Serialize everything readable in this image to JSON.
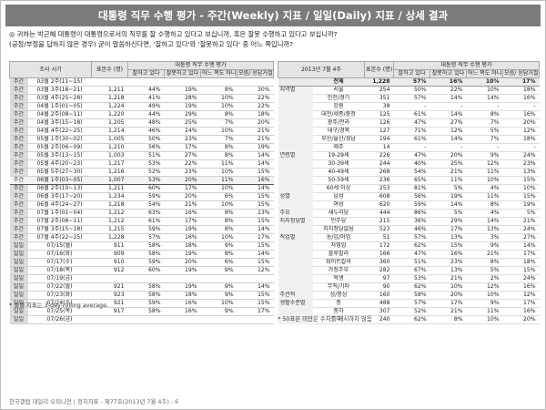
{
  "title": "대통령 직무 수행 평가 - 주간(Weekly) 지표 / 일일(Daily) 지표 / 상세 결과",
  "question": {
    "line1": "◎ 귀하는 박근혜 대통령이 대통령으로서의 직무를 잘 수행하고 있다고 보십니까, 혹은 잘못 수행하고 있다고 보십니까?",
    "line2": "(긍정/부정을 답하지 않은 경우) 굳이 말씀하신다면, '잘하고 있다'와 '잘못하고 있다' 중 어느 쪽입니까?"
  },
  "left_table": {
    "headers": {
      "period": "조사 시기",
      "base": "표본수 (명)",
      "group": "대통령 직무 수행 평가",
      "cols": [
        "잘하고 있다",
        "잘못하고 있다",
        "어느 쪽도 아니다",
        "모름/ 응답거절"
      ]
    },
    "rows": [
      {
        "kind": "주간",
        "period": "03월 2주(11~15)",
        "base": "",
        "v": [
          "",
          "",
          "",
          ""
        ],
        "blank": true
      },
      {
        "kind": "주간",
        "period": "03월 3주(18~21)",
        "base": "1,211",
        "v": [
          "44%",
          "19%",
          "8%",
          "30%"
        ]
      },
      {
        "kind": "주간",
        "period": "03월 4주(25~28)",
        "base": "1,218",
        "v": [
          "41%",
          "28%",
          "10%",
          "22%"
        ]
      },
      {
        "kind": "주간",
        "period": "04월 1주(01~05)",
        "base": "1,224",
        "v": [
          "49%",
          "19%",
          "10%",
          "22%"
        ]
      },
      {
        "kind": "주간",
        "period": "04월 2주(08~11)",
        "base": "1,220",
        "v": [
          "44%",
          "29%",
          "8%",
          "18%"
        ]
      },
      {
        "kind": "주간",
        "period": "04월 3주(15~18)",
        "base": "1,205",
        "v": [
          "48%",
          "25%",
          "7%",
          "20%"
        ]
      },
      {
        "kind": "주간",
        "period": "04월 4주(22~25)",
        "base": "1,214",
        "v": [
          "46%",
          "24%",
          "10%",
          "21%"
        ]
      },
      {
        "kind": "주간",
        "period": "05월 1주(30~02)",
        "base": "1,005",
        "v": [
          "50%",
          "23%",
          "7%",
          "21%"
        ]
      },
      {
        "kind": "주간",
        "period": "05월 2주(06~09)",
        "base": "1,210",
        "v": [
          "56%",
          "17%",
          "8%",
          "19%"
        ]
      },
      {
        "kind": "주간",
        "period": "05월 3주(13~15)",
        "base": "1,003",
        "v": [
          "51%",
          "27%",
          "8%",
          "14%"
        ]
      },
      {
        "kind": "주간",
        "period": "05월 4주(20~23)",
        "base": "1,217",
        "v": [
          "53%",
          "22%",
          "11%",
          "14%"
        ]
      },
      {
        "kind": "주간",
        "period": "05월 5주(27~30)",
        "base": "1,216",
        "v": [
          "52%",
          "23%",
          "10%",
          "15%"
        ]
      },
      {
        "kind": "주간",
        "period": "06월 1주(03~05)",
        "base": "1,007",
        "v": [
          "53%",
          "20%",
          "11%",
          "16%"
        ],
        "hl": true
      },
      {
        "kind": "주간",
        "period": "06월 2주(10~13)",
        "base": "1,211",
        "v": [
          "60%",
          "17%",
          "10%",
          "14%"
        ]
      },
      {
        "kind": "주간",
        "period": "06월 3주(17~20)",
        "base": "1,234",
        "v": [
          "59%",
          "20%",
          "6%",
          "15%"
        ]
      },
      {
        "kind": "주간",
        "period": "06월 4주(24~27)",
        "base": "1,218",
        "v": [
          "54%",
          "21%",
          "10%",
          "15%"
        ]
      },
      {
        "kind": "주간",
        "period": "07월 1주(01~04)",
        "base": "1,212",
        "v": [
          "63%",
          "16%",
          "8%",
          "13%"
        ]
      },
      {
        "kind": "주간",
        "period": "07월 2주(08~11)",
        "base": "1,212",
        "v": [
          "61%",
          "17%",
          "8%",
          "15%"
        ]
      },
      {
        "kind": "주간",
        "period": "07월 3주(15~18)",
        "base": "1,215",
        "v": [
          "59%",
          "19%",
          "8%",
          "14%"
        ]
      },
      {
        "kind": "주간",
        "period": "07월 4주(22~25)",
        "base": "1,228",
        "v": [
          "57%",
          "16%",
          "10%",
          "17%"
        ]
      },
      {
        "kind": "일일",
        "period": "07/15(월)",
        "base": "911",
        "v": [
          "58%",
          "18%",
          "9%",
          "15%"
        ]
      },
      {
        "kind": "일일",
        "period": "07/16(화)",
        "base": "909",
        "v": [
          "58%",
          "19%",
          "8%",
          "14%"
        ]
      },
      {
        "kind": "일일",
        "period": "07/17(수)",
        "base": "910",
        "v": [
          "59%",
          "20%",
          "6%",
          "15%"
        ]
      },
      {
        "kind": "일일",
        "period": "07/18(목)",
        "base": "912",
        "v": [
          "60%",
          "19%",
          "9%",
          "12%"
        ]
      },
      {
        "kind": "일일",
        "period": "07/19(금)",
        "base": "",
        "v": [
          "",
          "",
          "",
          ""
        ],
        "blank": true
      },
      {
        "kind": "일일",
        "period": "07/22(월)",
        "base": "921",
        "v": [
          "58%",
          "19%",
          "9%",
          "14%"
        ]
      },
      {
        "kind": "일일",
        "period": "07/23(화)",
        "base": "923",
        "v": [
          "58%",
          "18%",
          "9%",
          "15%"
        ]
      },
      {
        "kind": "일일",
        "period": "07/24(수)",
        "base": "921",
        "v": [
          "59%",
          "16%",
          "10%",
          "15%"
        ]
      },
      {
        "kind": "일일",
        "period": "07/25(목)",
        "base": "917",
        "v": [
          "58%",
          "16%",
          "9%",
          "17%"
        ]
      },
      {
        "kind": "일일",
        "period": "07/26(금)",
        "base": "",
        "v": [
          "",
          "",
          "",
          ""
        ],
        "blank": true
      }
    ],
    "note": "* 일일 지표는 3-day-rolling average."
  },
  "right_table": {
    "headers": {
      "period": "2013년 7월 4주",
      "base": "표본수 (명)",
      "group": "대통령 직무 수행 평가",
      "cols": [
        "잘하고 있다",
        "잘못하고 있다",
        "어느 쪽도 아니다",
        "모름/ 응답거절"
      ]
    },
    "rows": [
      {
        "grp": "",
        "sub": "전체",
        "base": "1,228",
        "v": [
          "57%",
          "16%",
          "10%",
          "17%"
        ],
        "total": true
      },
      {
        "grp": "지역별",
        "sub": "서울",
        "base": "254",
        "v": [
          "50%",
          "22%",
          "10%",
          "18%"
        ]
      },
      {
        "grp": "",
        "sub": "인천/경기",
        "base": "351",
        "v": [
          "57%",
          "14%",
          "14%",
          "16%"
        ]
      },
      {
        "grp": "",
        "sub": "강원",
        "base": "38",
        "v": [
          "-",
          "-",
          "-",
          "-"
        ]
      },
      {
        "grp": "",
        "sub": "대전/세종/충청",
        "base": "125",
        "v": [
          "61%",
          "14%",
          "8%",
          "16%"
        ]
      },
      {
        "grp": "",
        "sub": "광주/전라",
        "base": "126",
        "v": [
          "47%",
          "27%",
          "7%",
          "20%"
        ]
      },
      {
        "grp": "",
        "sub": "대구/경북",
        "base": "127",
        "v": [
          "71%",
          "12%",
          "5%",
          "12%"
        ]
      },
      {
        "grp": "",
        "sub": "부산/울산/경남",
        "base": "194",
        "v": [
          "61%",
          "14%",
          "7%",
          "18%"
        ]
      },
      {
        "grp": "",
        "sub": "제주",
        "base": "14",
        "v": [
          "-",
          "-",
          "-",
          "-"
        ]
      },
      {
        "grp": "연령별",
        "sub": "19-29세",
        "base": "226",
        "v": [
          "47%",
          "20%",
          "9%",
          "24%"
        ]
      },
      {
        "grp": "",
        "sub": "30-39세",
        "base": "244",
        "v": [
          "40%",
          "25%",
          "12%",
          "23%"
        ]
      },
      {
        "grp": "",
        "sub": "40-49세",
        "base": "268",
        "v": [
          "54%",
          "21%",
          "11%",
          "13%"
        ]
      },
      {
        "grp": "",
        "sub": "50-59세",
        "base": "236",
        "v": [
          "65%",
          "11%",
          "10%",
          "15%"
        ]
      },
      {
        "grp": "",
        "sub": "60세 이상",
        "base": "253",
        "v": [
          "81%",
          "5%",
          "4%",
          "10%"
        ]
      },
      {
        "grp": "성별",
        "sub": "남성",
        "base": "608",
        "v": [
          "56%",
          "19%",
          "11%",
          "15%"
        ]
      },
      {
        "grp": "",
        "sub": "여성",
        "base": "620",
        "v": [
          "59%",
          "14%",
          "8%",
          "19%"
        ]
      },
      {
        "grp": "주요",
        "sub": "새누리당",
        "base": "444",
        "v": [
          "86%",
          "5%",
          "4%",
          "5%"
        ]
      },
      {
        "grp": "지지정당별",
        "sub": "민주당",
        "base": "215",
        "v": [
          "36%",
          "29%",
          "14%",
          "21%"
        ]
      },
      {
        "grp": "",
        "sub": "지지정당없음",
        "base": "523",
        "v": [
          "46%",
          "17%",
          "13%",
          "24%"
        ]
      },
      {
        "grp": "직업별",
        "sub": "농/임/어업",
        "base": "51",
        "v": [
          "57%",
          "13%",
          "3%",
          "27%"
        ]
      },
      {
        "grp": "",
        "sub": "자영업",
        "base": "172",
        "v": [
          "62%",
          "15%",
          "9%",
          "14%"
        ]
      },
      {
        "grp": "",
        "sub": "블루칼라",
        "base": "166",
        "v": [
          "47%",
          "16%",
          "21%",
          "17%"
        ]
      },
      {
        "grp": "",
        "sub": "화이트칼라",
        "base": "360",
        "v": [
          "51%",
          "23%",
          "8%",
          "18%"
        ]
      },
      {
        "grp": "",
        "sub": "가정주부",
        "base": "282",
        "v": [
          "67%",
          "13%",
          "5%",
          "15%"
        ]
      },
      {
        "grp": "",
        "sub": "학생",
        "base": "97",
        "v": [
          "53%",
          "21%",
          "2%",
          "24%"
        ]
      },
      {
        "grp": "",
        "sub": "무직/기타",
        "base": "90",
        "v": [
          "62%",
          "10%",
          "12%",
          "16%"
        ]
      },
      {
        "grp": "주관적",
        "sub": "상/중상",
        "base": "160",
        "v": [
          "58%",
          "20%",
          "10%",
          "12%"
        ]
      },
      {
        "grp": "생활수준별",
        "sub": "중",
        "base": "488",
        "v": [
          "57%",
          "17%",
          "9%",
          "17%"
        ]
      },
      {
        "grp": "",
        "sub": "중하",
        "base": "307",
        "v": [
          "52%",
          "21%",
          "11%",
          "16%"
        ]
      },
      {
        "grp": "",
        "sub": "하",
        "base": "240",
        "v": [
          "62%",
          "8%",
          "10%",
          "20%"
        ]
      }
    ],
    "note": "* 50표본 미만은 수치를 게시하지 않음"
  },
  "footer": "한국갤럽 데일리 오피니언 | 정치지표 - 제77호(2013년 7월 4주) - 6"
}
